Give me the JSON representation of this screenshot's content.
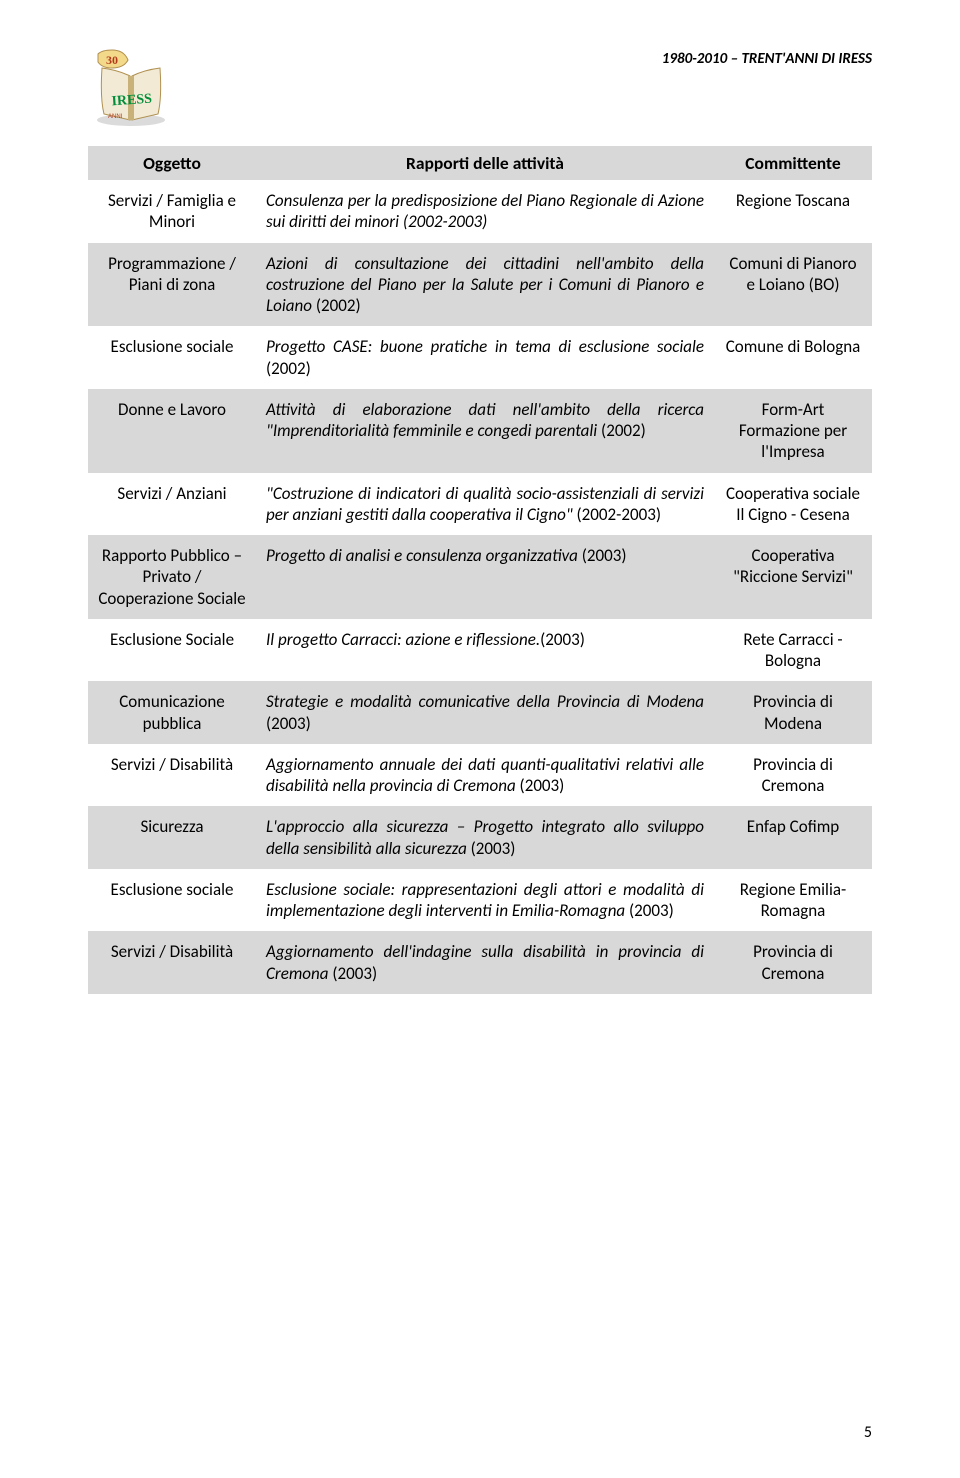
{
  "header": {
    "title": "1980-2010 – TRENT'ANNI DI IRESS",
    "logo": {
      "badge_top_fill": "#f3d98a",
      "badge_top_text": "30",
      "badge_top_text_color": "#b23a1a",
      "book_page_fill": "#f2ead4",
      "book_spine_fill": "#c9b27a",
      "lettering": "IRESS",
      "lettering_color": "#008e3a",
      "footer_word": "ANNI",
      "shadow_color": "#b8b8b8"
    }
  },
  "table": {
    "header_bg": "#d8d8d8",
    "shade_bg": "#d8d8d8",
    "columns": [
      "Oggetto",
      "Rapporti delle attività",
      "Committente"
    ],
    "rows": [
      {
        "shade": false,
        "c1": "Servizi / Famiglia e Minori",
        "c2_italic": "Consulenza per la predisposizione del Piano Regionale di Azione sui diritti dei minori (2002-2003)",
        "c3": "Regione Toscana"
      },
      {
        "shade": true,
        "c1": "Programmazione / Piani di zona",
        "c2_italic": "Azioni di consultazione dei cittadini nell'ambito della costruzione del Piano per la Salute per i Comuni di Pianoro e Loiano",
        "c2_tail": " (2002)",
        "c3": "Comuni di Pianoro e Loiano (BO)"
      },
      {
        "shade": false,
        "c1": "Esclusione sociale",
        "c2_italic": "Progetto CASE: buone pratiche in tema di esclusione sociale",
        "c2_tail": " (2002)",
        "c3": "Comune di Bologna"
      },
      {
        "shade": true,
        "c1": "Donne e Lavoro",
        "c2_italic": "Attività di elaborazione dati nell'ambito della ricerca \"Imprenditorialità femminile e congedi parentali",
        "c2_tail": " (2002)",
        "c3": "Form-Art Formazione per l'Impresa"
      },
      {
        "shade": false,
        "c1": "Servizi / Anziani",
        "c2_italic": "\"Costruzione di indicatori di qualità socio-assistenziali di servizi per anziani gestiti dalla cooperativa il Cigno\"",
        "c2_tail": " (2002-2003)",
        "c3": "Cooperativa sociale Il Cigno - Cesena"
      },
      {
        "shade": true,
        "c1": "Rapporto Pubblico – Privato / Cooperazione Sociale",
        "c2_italic": "Progetto di analisi e consulenza organizzativa",
        "c2_tail": " (2003)",
        "c3": "Cooperativa \"Riccione Servizi\""
      },
      {
        "shade": false,
        "c1": "Esclusione Sociale",
        "c2_italic": "Il progetto Carracci: azione e riflessione.",
        "c2_tail": "(2003)",
        "c3": "Rete Carracci - Bologna"
      },
      {
        "shade": true,
        "c1": "Comunicazione pubblica",
        "c2_italic": "Strategie e modalità comunicative della Provincia di Modena",
        "c2_tail": " (2003)",
        "c3": "Provincia di Modena"
      },
      {
        "shade": false,
        "c1": "Servizi / Disabilità",
        "c2_italic": "Aggiornamento annuale dei dati quanti-qualitativi relativi alle disabilità nella provincia di Cremona",
        "c2_tail": " (2003)",
        "c3": "Provincia di Cremona"
      },
      {
        "shade": true,
        "c1": "Sicurezza",
        "c2_italic": "L'approccio alla sicurezza – Progetto integrato allo sviluppo della sensibilità alla sicurezza",
        "c2_tail": " (2003)",
        "c3": "Enfap Cofimp"
      },
      {
        "shade": false,
        "c1": "Esclusione sociale",
        "c2_italic": "Esclusione sociale: rappresentazioni degli attori e modalità di implementazione degli interventi in Emilia-Romagna",
        "c2_tail": " (2003)",
        "c3": "Regione Emilia-Romagna"
      },
      {
        "shade": true,
        "c1": "Servizi / Disabilità",
        "c2_italic": "Aggiornamento dell'indagine sulla disabilità in provincia di Cremona",
        "c2_tail": " (2003)",
        "c3": "Provincia di Cremona"
      }
    ]
  },
  "page_number": "5"
}
